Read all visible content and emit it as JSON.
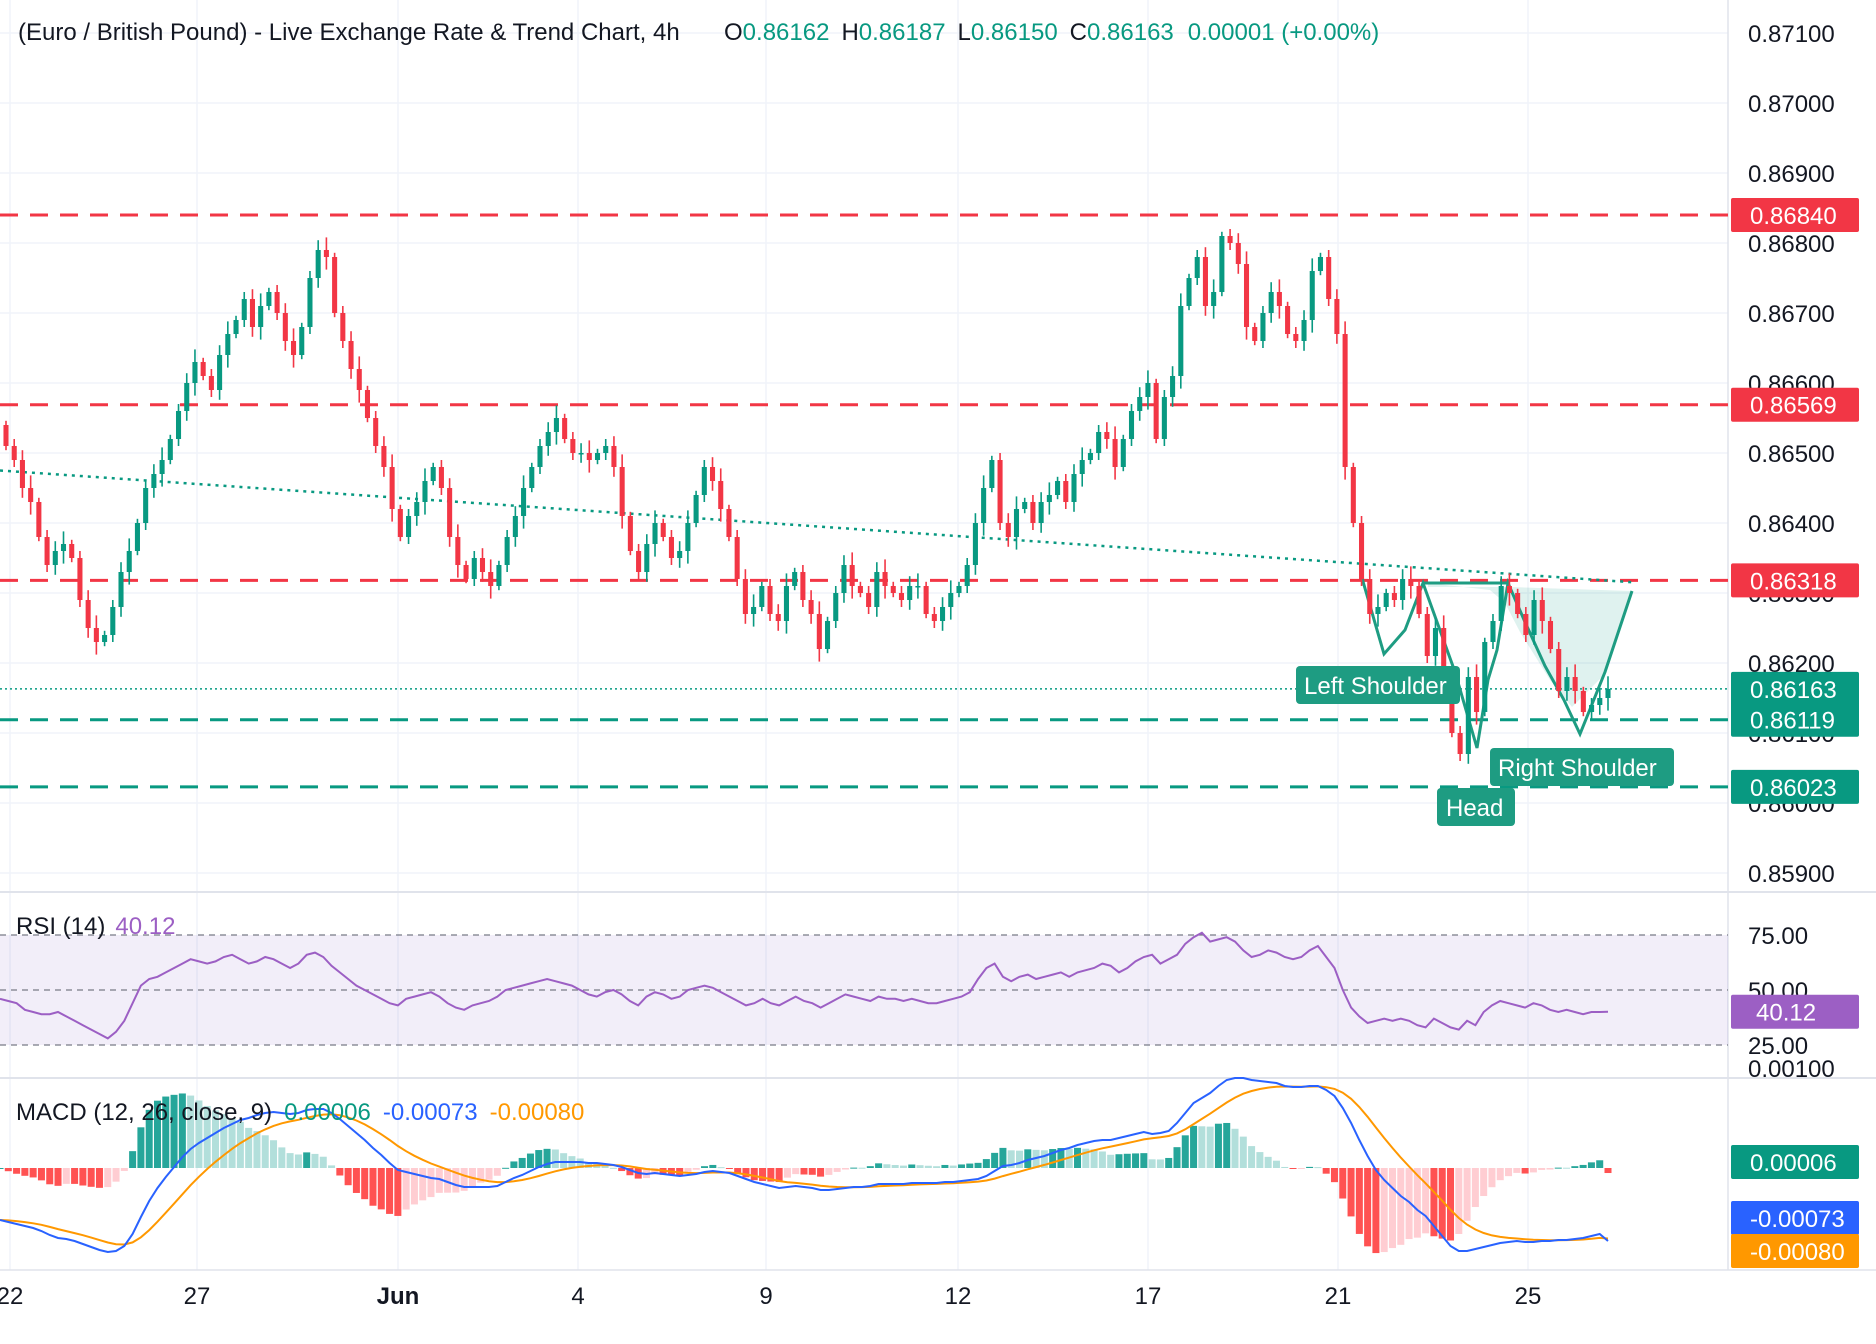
{
  "header": {
    "symbol_title": "(Euro / British Pound) - Live Exchange Rate & Trend Chart, 4h",
    "open_label": "O",
    "open_value": "0.86162",
    "high_label": "H",
    "high_value": "0.86187",
    "low_label": "L",
    "low_value": "0.86150",
    "close_label": "C",
    "close_value": "0.86163",
    "change": "0.00001 (+0.00%)"
  },
  "colors": {
    "up": "#089981",
    "down": "#f23645",
    "pattern": "#1e9c82",
    "rsi": "#9c5fc4",
    "macd": "#2962ff",
    "signal": "#ff9800",
    "text": "#131722"
  },
  "price_levels": [
    {
      "value": "0.86840",
      "kind": "resistance"
    },
    {
      "value": "0.86569",
      "kind": "resistance"
    },
    {
      "value": "0.86318",
      "kind": "resistance"
    },
    {
      "value": "0.86163",
      "kind": "last"
    },
    {
      "value": "0.86119",
      "kind": "support"
    },
    {
      "value": "0.86023",
      "kind": "support"
    }
  ],
  "pattern_labels": {
    "left_shoulder": "Left Shoulder",
    "head": "Head",
    "right_shoulder": "Right Shoulder"
  },
  "rsi": {
    "title": "RSI (14)",
    "value": "40.12",
    "ticks": [
      "75.00",
      "50.00",
      "25.00"
    ]
  },
  "macd": {
    "title": "MACD (12, 26, close, 9)",
    "histogram": "0.00006",
    "macd_line": "-0.00073",
    "signal_line": "-0.00080",
    "top_tick": "0.00100"
  },
  "chart_data": {
    "type": "candlestick",
    "timeframe": "4h",
    "x_ticks": [
      "22",
      "27",
      "Jun",
      "4",
      "9",
      "12",
      "17",
      "21",
      "25"
    ],
    "y_ticks": [
      "0.87100",
      "0.87000",
      "0.86900",
      "0.86800",
      "0.86700",
      "0.86600",
      "0.86500",
      "0.86400",
      "0.86300",
      "0.86200",
      "0.86100",
      "0.86000",
      "0.85900"
    ],
    "ylim": [
      0.85885,
      0.87135
    ],
    "horizontal_levels": [
      0.8684,
      0.86569,
      0.86318,
      0.86163,
      0.86119,
      0.86023
    ],
    "trendline": {
      "start": 0.86475,
      "end": 0.86315
    },
    "closes": [
      0.8651,
      0.8649,
      0.8645,
      0.8643,
      0.8638,
      0.8634,
      0.8636,
      0.8637,
      0.8635,
      0.8629,
      0.8625,
      0.8623,
      0.8624,
      0.8628,
      0.8633,
      0.8636,
      0.864,
      0.8645,
      0.8647,
      0.8649,
      0.8652,
      0.8656,
      0.866,
      0.8663,
      0.8661,
      0.8659,
      0.8664,
      0.8667,
      0.8669,
      0.8672,
      0.8668,
      0.8671,
      0.8673,
      0.867,
      0.8666,
      0.8664,
      0.8668,
      0.8675,
      0.8679,
      0.8678,
      0.867,
      0.8666,
      0.8662,
      0.8659,
      0.8655,
      0.8651,
      0.8648,
      0.8642,
      0.8638,
      0.8641,
      0.8643,
      0.8646,
      0.8648,
      0.8645,
      0.8638,
      0.8634,
      0.8632,
      0.8635,
      0.8633,
      0.8631,
      0.8634,
      0.8638,
      0.8641,
      0.8645,
      0.8648,
      0.8651,
      0.8653,
      0.8655,
      0.8652,
      0.865,
      0.865,
      0.8649,
      0.865,
      0.8651,
      0.8648,
      0.8641,
      0.8636,
      0.8633,
      0.8637,
      0.864,
      0.8638,
      0.8635,
      0.8636,
      0.864,
      0.8644,
      0.8648,
      0.8646,
      0.8642,
      0.8638,
      0.8632,
      0.8627,
      0.8628,
      0.8631,
      0.8627,
      0.8626,
      0.8631,
      0.8633,
      0.8629,
      0.8627,
      0.8622,
      0.8626,
      0.863,
      0.8634,
      0.8631,
      0.863,
      0.8628,
      0.8633,
      0.8631,
      0.863,
      0.8629,
      0.8631,
      0.8631,
      0.8627,
      0.8626,
      0.8628,
      0.863,
      0.8631,
      0.8634,
      0.864,
      0.8645,
      0.8649,
      0.864,
      0.8638,
      0.8642,
      0.8643,
      0.864,
      0.8643,
      0.8644,
      0.8646,
      0.8643,
      0.8647,
      0.8649,
      0.865,
      0.8653,
      0.8652,
      0.8648,
      0.8652,
      0.8656,
      0.8658,
      0.866,
      0.8652,
      0.8658,
      0.8661,
      0.8671,
      0.8675,
      0.8678,
      0.8671,
      0.8673,
      0.8681,
      0.868,
      0.8677,
      0.8668,
      0.8666,
      0.867,
      0.8673,
      0.8671,
      0.8667,
      0.8666,
      0.8669,
      0.8676,
      0.8678,
      0.8672,
      0.8667,
      0.8648,
      0.864,
      0.8632,
      0.8627,
      0.8628,
      0.863,
      0.8629,
      0.8632,
      0.8631,
      0.8627,
      0.8621,
      0.8625,
      0.8616,
      0.861,
      0.8607,
      0.8618,
      0.8613,
      0.8623,
      0.8626,
      0.8631,
      0.863,
      0.8627,
      0.8624,
      0.8629,
      0.8626,
      0.8622,
      0.8616,
      0.8618,
      0.8616,
      0.8613,
      0.8614,
      0.8615,
      0.86163
    ],
    "rsi_values": [
      46,
      45,
      44,
      41,
      40,
      39,
      39,
      40,
      38,
      36,
      34,
      32,
      30,
      28,
      31,
      36,
      44,
      52,
      55,
      56,
      58,
      60,
      62,
      64,
      63,
      62,
      63,
      65,
      66,
      64,
      62,
      63,
      65,
      64,
      62,
      60,
      62,
      66,
      67,
      65,
      61,
      58,
      55,
      52,
      50,
      48,
      46,
      44,
      43,
      46,
      47,
      48,
      49,
      47,
      44,
      42,
      41,
      43,
      44,
      45,
      47,
      50,
      51,
      52,
      53,
      54,
      55,
      54,
      53,
      52,
      50,
      48,
      47,
      49,
      50,
      48,
      45,
      43,
      47,
      49,
      48,
      46,
      47,
      50,
      51,
      52,
      51,
      49,
      47,
      45,
      43,
      44,
      46,
      44,
      43,
      45,
      47,
      45,
      44,
      42,
      44,
      46,
      48,
      47,
      46,
      45,
      47,
      46,
      46,
      45,
      46,
      45,
      44,
      44,
      45,
      46,
      47,
      49,
      55,
      60,
      62,
      56,
      54,
      56,
      57,
      55,
      56,
      57,
      58,
      56,
      58,
      59,
      60,
      62,
      61,
      58,
      60,
      63,
      65,
      66,
      62,
      64,
      66,
      71,
      74,
      76,
      72,
      73,
      74,
      72,
      68,
      65,
      66,
      68,
      67,
      65,
      64,
      65,
      68,
      70,
      65,
      60,
      50,
      42,
      38,
      35,
      36,
      37,
      36,
      37,
      36,
      34,
      33,
      37,
      35,
      33,
      32,
      36,
      34,
      40,
      43,
      45,
      44,
      43,
      42,
      44,
      43,
      41,
      40,
      41,
      40,
      39,
      40,
      40,
      40.12
    ],
    "macd_values": [
      -0.00052,
      -0.00054,
      -0.00056,
      -0.00058,
      -0.0006,
      -0.00063,
      -0.00067,
      -0.0007,
      -0.00071,
      -0.00073,
      -0.00076,
      -0.00079,
      -0.00082,
      -0.00084,
      -0.00083,
      -0.00078,
      -0.00066,
      -0.00049,
      -0.00033,
      -0.0002,
      -9e-05,
      1e-05,
      0.00011,
      0.00019,
      0.00025,
      0.0003,
      0.00035,
      0.0004,
      0.00044,
      0.00048,
      0.0005,
      0.00053,
      0.00055,
      0.00056,
      0.00055,
      0.00054,
      0.00055,
      0.00058,
      0.00059,
      0.00059,
      0.00055,
      0.00049,
      0.00042,
      0.00035,
      0.00028,
      0.0002,
      0.00013,
      5e-05,
      -2e-05,
      -4e-05,
      -6e-05,
      -8e-05,
      -0.0001,
      -0.00011,
      -0.00014,
      -0.00017,
      -0.00019,
      -0.00019,
      -0.00019,
      -0.00019,
      -0.00018,
      -0.00014,
      -0.0001,
      -7e-05,
      -3e-05,
      1e-05,
      4e-05,
      6e-05,
      6e-05,
      6e-05,
      6e-05,
      5e-05,
      5e-05,
      4e-05,
      3e-05,
      1e-05,
      -2e-05,
      -5e-05,
      -6e-05,
      -5e-05,
      -6e-05,
      -7e-05,
      -8e-05,
      -7e-05,
      -6e-05,
      -4e-05,
      -3e-05,
      -4e-05,
      -5e-05,
      -8e-05,
      -0.00011,
      -0.00014,
      -0.00016,
      -0.00018,
      -0.0002,
      -0.00019,
      -0.00018,
      -0.00019,
      -0.0002,
      -0.00022,
      -0.00022,
      -0.00021,
      -0.0002,
      -0.00019,
      -0.00019,
      -0.00018,
      -0.00016,
      -0.00016,
      -0.00016,
      -0.00016,
      -0.00015,
      -0.00015,
      -0.00015,
      -0.00015,
      -0.00014,
      -0.00014,
      -0.00013,
      -0.00012,
      -0.00011,
      -8e-05,
      -3e-05,
      2e-05,
      3e-05,
      5e-05,
      8e-05,
      0.0001,
      0.00012,
      0.00015,
      0.00018,
      0.0002,
      0.00023,
      0.00025,
      0.00027,
      0.00028,
      0.00028,
      0.0003,
      0.00032,
      0.00034,
      0.00036,
      0.00034,
      0.00035,
      0.00037,
      0.00045,
      0.00055,
      0.00065,
      0.0007,
      0.00075,
      0.00082,
      0.00088,
      0.0009,
      0.0009,
      0.00088,
      0.00087,
      0.00086,
      0.00085,
      0.00082,
      0.00081,
      0.00081,
      0.00082,
      0.00082,
      0.00078,
      0.00072,
      0.0006,
      0.00045,
      0.00028,
      0.00012,
      -2e-05,
      -0.00012,
      -0.0002,
      -0.00028,
      -0.00034,
      -0.00042,
      -0.00048,
      -0.00058,
      -0.00068,
      -0.00078,
      -0.00083,
      -0.00083,
      -0.00081,
      -0.00079,
      -0.00077,
      -0.00075,
      -0.00074,
      -0.00073,
      -0.00074,
      -0.00074,
      -0.00073,
      -0.00073,
      -0.00072,
      -0.00072,
      -0.00071,
      -0.0007,
      -0.00068,
      -0.00066,
      -0.00073
    ]
  }
}
